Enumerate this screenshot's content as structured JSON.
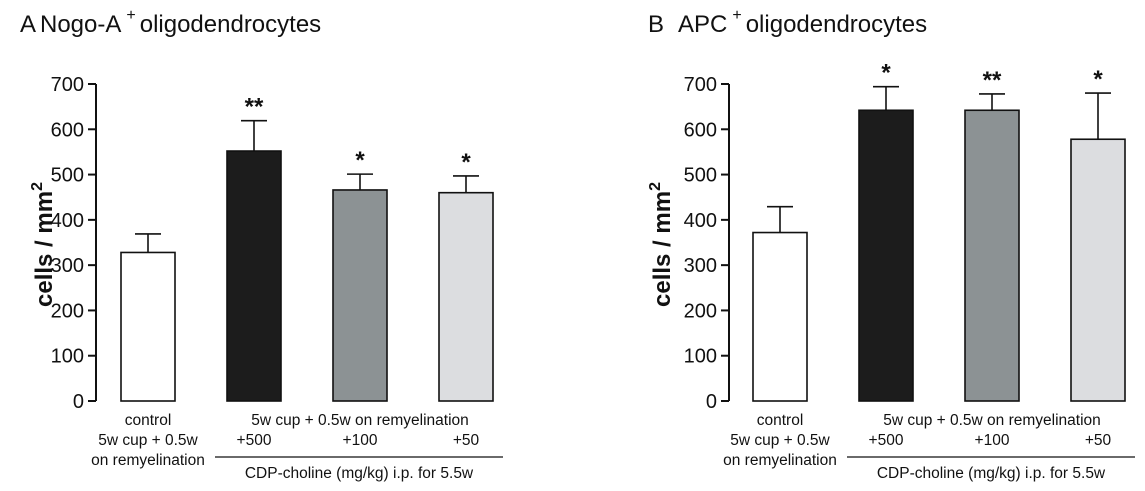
{
  "chart_data": [
    {
      "type": "bar",
      "panel_letter": "A",
      "title_pre": "Nogo-A",
      "title_sup": "+",
      "title_post": "oligodendrocytes",
      "ylabel_base": "cells / mm",
      "ylabel_sup": "2",
      "ylim": [
        0,
        700
      ],
      "yticks": [
        0,
        100,
        200,
        300,
        400,
        500,
        600,
        700
      ],
      "grid": false,
      "legend": "none",
      "series": [
        {
          "values": [
            328,
            552,
            466,
            460
          ],
          "errors": [
            41,
            67,
            35,
            37
          ],
          "colors": [
            "#ffffff",
            "#1c1c1c",
            "#8c9294",
            "#dcdde0"
          ],
          "significance": [
            "",
            "**",
            "*",
            "*"
          ]
        }
      ],
      "control_label": [
        "control",
        "5w cup + 0.5w",
        "on remyelination"
      ],
      "treatment_group_label": "5w cup + 0.5w on remyelination",
      "dose_labels": [
        "+500",
        "+100",
        "+50"
      ],
      "treatment_footer": "CDP-choline (mg/kg) i.p. for 5.5w"
    },
    {
      "type": "bar",
      "panel_letter": "B",
      "title_pre": "APC",
      "title_sup": "+",
      "title_post": "oligodendrocytes",
      "ylabel_base": "cells / mm",
      "ylabel_sup": "2",
      "ylim": [
        0,
        700
      ],
      "yticks": [
        0,
        100,
        200,
        300,
        400,
        500,
        600,
        700
      ],
      "grid": false,
      "legend": "none",
      "series": [
        {
          "values": [
            372,
            642,
            642,
            578
          ],
          "errors": [
            57,
            52,
            36,
            102
          ],
          "colors": [
            "#ffffff",
            "#1c1c1c",
            "#8c9294",
            "#dcdde0"
          ],
          "significance": [
            "",
            "*",
            "**",
            "*"
          ]
        }
      ],
      "control_label": [
        "control",
        "5w cup + 0.5w",
        "on remyelination"
      ],
      "treatment_group_label": "5w cup + 0.5w on remyelination",
      "dose_labels": [
        "+500",
        "+100",
        "+50"
      ],
      "treatment_footer": "CDP-choline (mg/kg) i.p. for 5.5w"
    }
  ]
}
